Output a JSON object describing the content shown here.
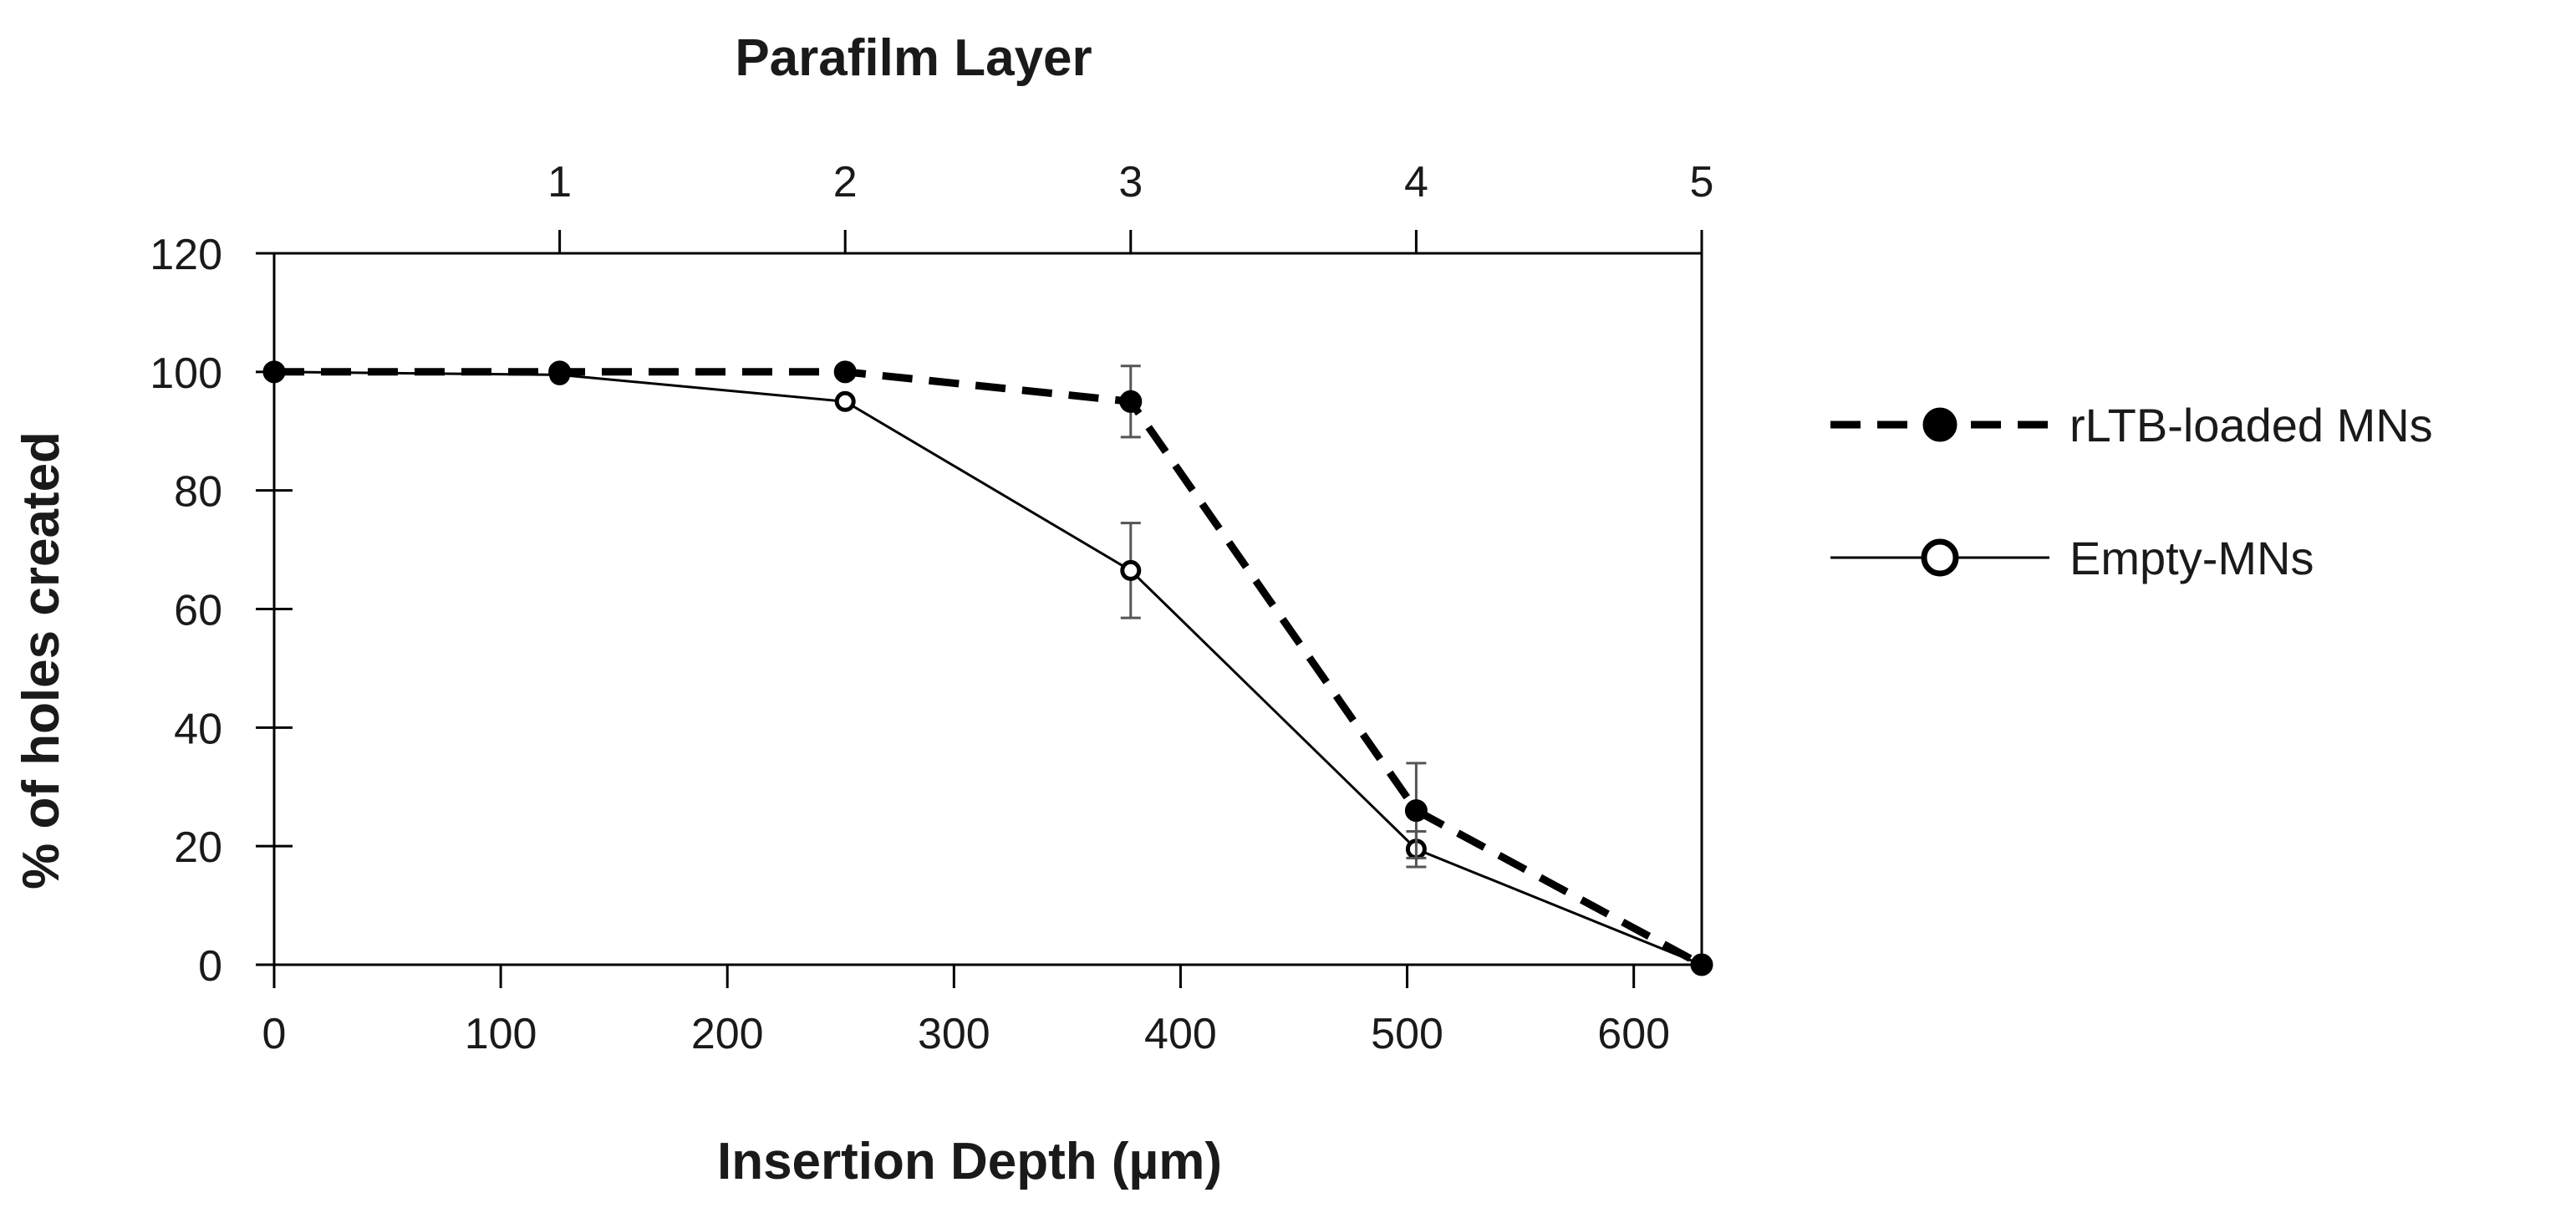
{
  "chart_data": {
    "type": "line",
    "title": "",
    "xlabel": "Insertion Depth (µm)",
    "ylabel": "% of holes created",
    "top_xlabel": "Parafilm Layer",
    "xlim": [
      0,
      630
    ],
    "ylim": [
      0,
      120
    ],
    "x_ticks": [
      0,
      100,
      200,
      300,
      400,
      500,
      600
    ],
    "y_ticks": [
      0,
      20,
      40,
      60,
      80,
      100,
      120
    ],
    "top_ticks": [
      {
        "x": 126,
        "label": "1"
      },
      {
        "x": 252,
        "label": "2"
      },
      {
        "x": 378,
        "label": "3"
      },
      {
        "x": 504,
        "label": "4"
      },
      {
        "x": 630,
        "label": "5"
      }
    ],
    "grid": false,
    "legend_position": "right",
    "series": [
      {
        "name": "rLTB-loaded MNs",
        "style": "dashed",
        "marker": "filled-circle",
        "x": [
          0,
          126,
          252,
          378,
          504,
          630
        ],
        "y": [
          100,
          100,
          100,
          95,
          26,
          0
        ],
        "err": [
          0,
          0,
          0,
          6,
          8,
          0
        ]
      },
      {
        "name": "Empty-MNs",
        "style": "solid",
        "marker": "open-circle",
        "x": [
          0,
          126,
          252,
          378,
          504,
          630
        ],
        "y": [
          100,
          99.5,
          95,
          66.5,
          19.5,
          0
        ],
        "err": [
          0,
          0,
          0,
          8,
          3,
          0
        ]
      }
    ]
  }
}
